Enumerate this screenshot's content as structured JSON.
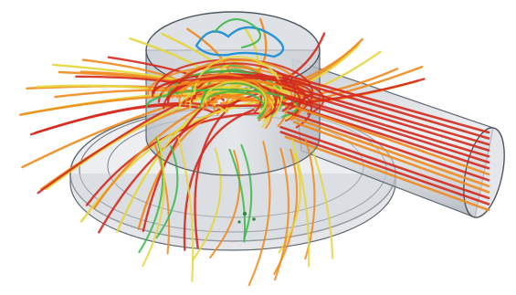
{
  "image": {
    "subject": "cfd-streamline-visualization",
    "colors": {
      "background": "#ffffff",
      "housing_fill": "#cfd3d9",
      "housing_stroke": "#5e6670",
      "streamline_fast": "#d42a1c",
      "streamline_mid": "#f08a1c",
      "streamline_slow": "#e6d63a",
      "streamline_low": "#3cb84a",
      "streamline_min": "#1f8fd6"
    }
  }
}
